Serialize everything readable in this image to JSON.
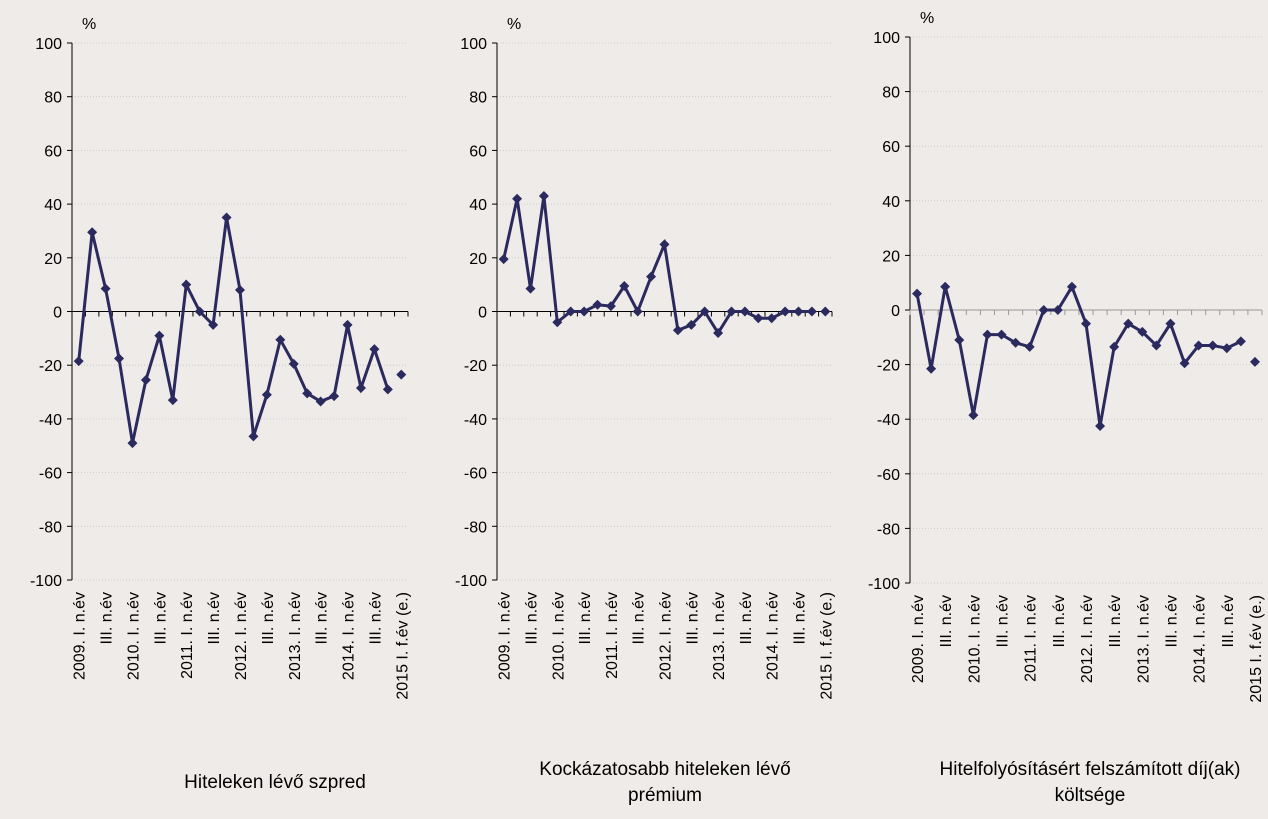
{
  "chart_data": [
    {
      "type": "line",
      "title": "Hiteleken lévő szpred",
      "y_unit": "%",
      "categories": [
        "2009. I. n.év",
        null,
        "III. n.év",
        null,
        "2010. I. n.év",
        null,
        "III. n.év",
        null,
        "2011. I. n.év",
        null,
        "III. n.év",
        null,
        "2012. I. n.év",
        null,
        "III. n.év",
        null,
        "2013. I. n.év",
        null,
        "III. n.év",
        null,
        "2014. I. n.év",
        null,
        "III. n.év",
        null,
        "2015 I. f.év (e.)"
      ],
      "values": [
        -18.5,
        29.5,
        8.5,
        -17.5,
        -49,
        -25.5,
        -9,
        -33,
        10,
        0,
        -5,
        35,
        8,
        -46.5,
        -31,
        -10.5,
        -19.5,
        -30.5,
        -33.5,
        -31.5,
        -5,
        -28.5,
        -14,
        -29,
        -23.5
      ],
      "color": "#2b2a5e",
      "ylim": [
        -100,
        100
      ],
      "yticks": [
        -100,
        -80,
        -60,
        -40,
        -20,
        0,
        20,
        40,
        60,
        80,
        100
      ],
      "grid": true
    },
    {
      "type": "line",
      "title": "Kockázatosabb hiteleken lévő prémium",
      "y_unit": "%",
      "categories": [
        "2009. I. n.év",
        null,
        "III. n.év",
        null,
        "2010. I. n.év",
        null,
        "III. n.év",
        null,
        "2011. I. n.év",
        null,
        "III. n.év",
        null,
        "2012. I. n.év",
        null,
        "III. n.év",
        null,
        "2013. I. n.év",
        null,
        "III. n.év",
        null,
        "2014. I. n.év",
        null,
        "III. n.év",
        null,
        "2015 I. f.év (e.)"
      ],
      "values": [
        19.5,
        42,
        8.5,
        43,
        -4,
        0,
        0,
        2.5,
        2,
        9.5,
        0,
        13,
        25,
        -7,
        -5,
        0,
        -8,
        0,
        0,
        -2.5,
        -2.5,
        0,
        0,
        0,
        0
      ],
      "color": "#2b2a5e",
      "ylim": [
        -100,
        100
      ],
      "yticks": [
        -100,
        -80,
        -60,
        -40,
        -20,
        0,
        20,
        40,
        60,
        80,
        100
      ],
      "grid": true
    },
    {
      "type": "line",
      "title": "Hitelfolyósításért felszámított díj(ak) költsége",
      "y_unit": "%",
      "categories": [
        "2009. I. n.év",
        null,
        "III. n.év",
        null,
        "2010. I. n.év",
        null,
        "III. n.év",
        null,
        "2011. I. n.év",
        null,
        "III. n.év",
        null,
        "2012. I. n.év",
        null,
        "III. n.év",
        null,
        "2013. I. n.év",
        null,
        "III. n.év",
        null,
        "2014. I. n.év",
        null,
        "III. n.év",
        null,
        "2015 I. f.év (e.)"
      ],
      "values": [
        6,
        -21.5,
        8.5,
        -11,
        -38.5,
        -9,
        -9,
        -12,
        -13.5,
        0,
        0,
        8.5,
        -5,
        -42.5,
        -13.5,
        -5,
        -8,
        -13,
        -5,
        -19.5,
        -13,
        -13,
        -14,
        -11.5,
        -19
      ],
      "color": "#2b2a5e",
      "ylim": [
        -100,
        100
      ],
      "yticks": [
        -100,
        -80,
        -60,
        -40,
        -20,
        0,
        20,
        40,
        60,
        80,
        100
      ],
      "grid": true
    }
  ]
}
